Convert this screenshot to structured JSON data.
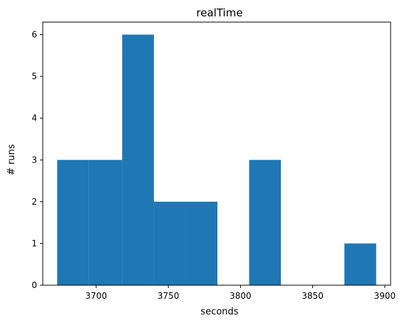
{
  "chart_data": {
    "type": "bar",
    "title": "realTime",
    "xlabel": "seconds",
    "ylabel": "# runs",
    "bin_edges": [
      3673,
      3695,
      3718,
      3740,
      3762,
      3784,
      3806,
      3828,
      3850,
      3872,
      3894
    ],
    "values": [
      3,
      3,
      6,
      2,
      2,
      0,
      3,
      0,
      0,
      1
    ],
    "xlim": [
      3663,
      3904
    ],
    "ylim": [
      0,
      6.3
    ],
    "xticks": [
      3700,
      3750,
      3800,
      3850,
      3900
    ],
    "xtick_labels": [
      "3700",
      "3750",
      "3800",
      "3850",
      "3900"
    ],
    "yticks": [
      0,
      1,
      2,
      3,
      4,
      5,
      6
    ],
    "ytick_labels": [
      "0",
      "1",
      "2",
      "3",
      "4",
      "5",
      "6"
    ],
    "bar_color": "#1f77b4",
    "grid": false,
    "legend": "none"
  }
}
